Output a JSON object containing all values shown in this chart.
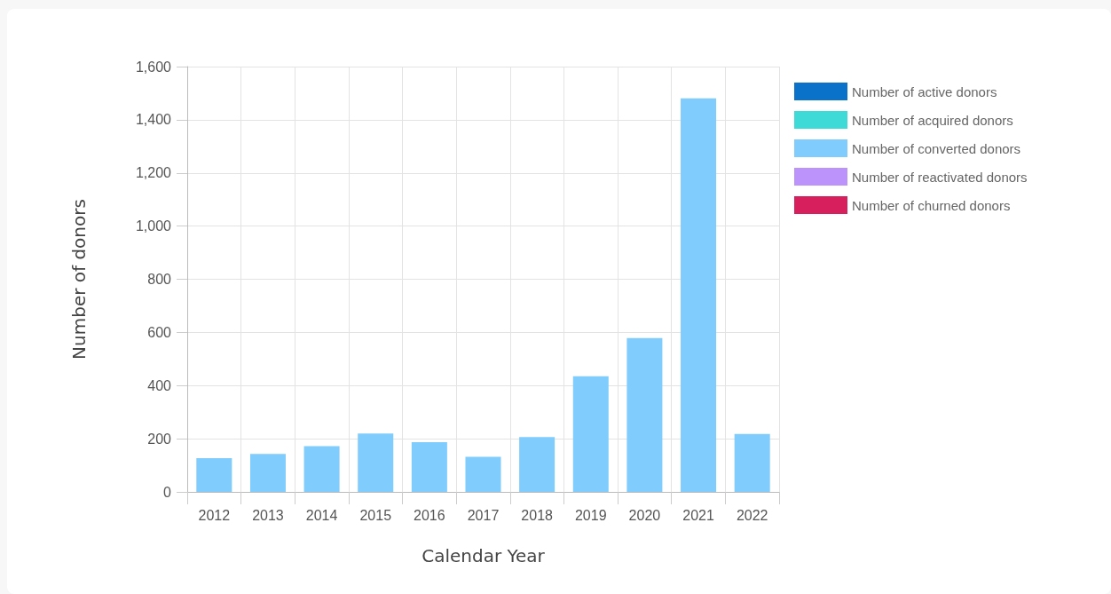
{
  "chart_data": {
    "type": "bar",
    "xlabel": "Calendar Year",
    "ylabel": "Number of donors",
    "categories": [
      "2012",
      "2013",
      "2014",
      "2015",
      "2016",
      "2017",
      "2018",
      "2019",
      "2020",
      "2021",
      "2022"
    ],
    "series": [
      {
        "name": "Number of active donors",
        "color": "#0a72c8",
        "values": [
          null,
          null,
          null,
          null,
          null,
          null,
          null,
          null,
          null,
          null,
          null
        ]
      },
      {
        "name": "Number of acquired donors",
        "color": "#3ddad7",
        "values": [
          null,
          null,
          null,
          null,
          null,
          null,
          null,
          null,
          null,
          null,
          null
        ]
      },
      {
        "name": "Number of converted donors",
        "color": "#80ccfc",
        "values": [
          127,
          143,
          172,
          220,
          187,
          132,
          206,
          435,
          579,
          1481,
          218
        ]
      },
      {
        "name": "Number of reactivated donors",
        "color": "#bb93fb",
        "values": [
          null,
          null,
          null,
          null,
          null,
          null,
          null,
          null,
          null,
          null,
          null
        ]
      },
      {
        "name": "Number of churned donors",
        "color": "#d61f5c",
        "values": [
          null,
          null,
          null,
          null,
          null,
          null,
          null,
          null,
          null,
          null,
          null
        ]
      }
    ],
    "ylim": [
      0,
      1600
    ],
    "yticks": [
      0,
      200,
      400,
      600,
      800,
      {
        "value": 1000,
        "label": "1,000"
      },
      {
        "value": 1200,
        "label": "1,200"
      },
      {
        "value": 1400,
        "label": "1,400"
      },
      {
        "value": 1600,
        "label": "1,600"
      }
    ],
    "grid": true,
    "legend": "top right"
  }
}
